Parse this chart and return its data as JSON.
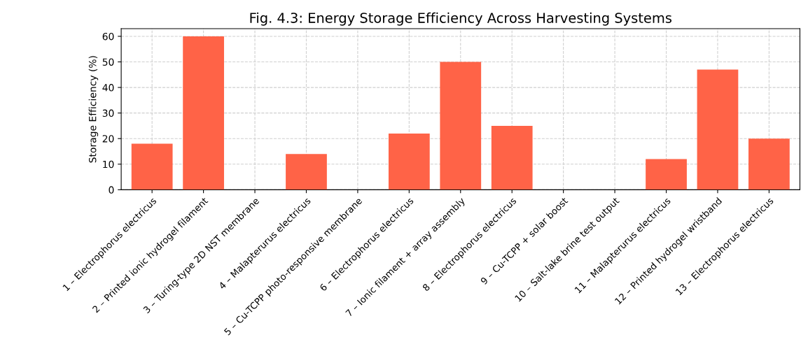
{
  "chart_data": {
    "type": "bar",
    "title": "Fig. 4.3: Energy Storage Efficiency Across Harvesting Systems",
    "ylabel": "Storage Efficiency (%)",
    "categories": [
      "1 – Electrophorus electricus",
      "2 – Printed ionic hydrogel filament",
      "3 – Turing-type 2D NST membrane",
      "4 – Malapterurus electricus",
      "5 – Cu-TCPP photo-responsive membrane",
      "6 – Electrophorus electricus",
      "7 – Ionic filament + array assembly",
      "8 – Electrophorus electricus",
      "9 – Cu-TCPP + solar boost",
      "10 – Salt-lake brine test output",
      "11 – Malapterurus electricus",
      "12 – Printed hydrogel wristband",
      "13 – Electrophorus electricus"
    ],
    "values": [
      18,
      60,
      0,
      14,
      0,
      22,
      50,
      25,
      0,
      0,
      12,
      47,
      20
    ],
    "color": "#ff6347",
    "ylim": [
      0,
      63
    ],
    "yticks": [
      0,
      10,
      20,
      30,
      40,
      50,
      60
    ],
    "grid": true
  }
}
